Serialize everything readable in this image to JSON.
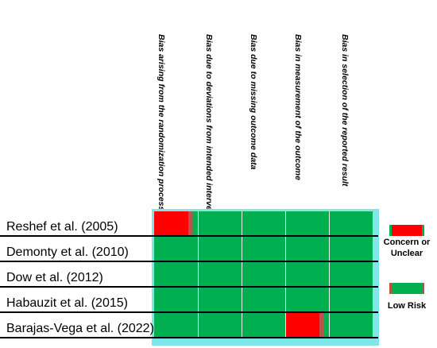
{
  "columns": [
    "Bias arising from the randomization process",
    "Bias due to deviations from intended interventions",
    "Bias due to missing outcome data",
    "Bias in measurement of the outcome",
    "Bias in selection of the reported result"
  ],
  "studies": [
    {
      "label": "Reshef et al. (2005)",
      "ratings": [
        "concern",
        "low",
        "low",
        "low",
        "low"
      ]
    },
    {
      "label": "Demonty et al. (2010)",
      "ratings": [
        "low",
        "low",
        "low",
        "low",
        "low"
      ]
    },
    {
      "label": "Dow et al. (2012)",
      "ratings": [
        "low",
        "low",
        "low",
        "low",
        "low"
      ]
    },
    {
      "label": "Habauzit et al. (2015)",
      "ratings": [
        "low",
        "low",
        "low",
        "low",
        "low"
      ]
    },
    {
      "label": "Barajas-Vega et al. (2022)",
      "ratings": [
        "low",
        "low",
        "low",
        "concern",
        "low"
      ]
    }
  ],
  "legend": {
    "concern": {
      "label": "Concern or Unclear",
      "color": "#ff0000"
    },
    "low": {
      "label": "Low Risk",
      "color": "#00b050"
    }
  },
  "colors": {
    "low": "#00b050",
    "concern": "#ff0000",
    "outline": "#7fe6ea",
    "edge": "#c0504d"
  }
}
